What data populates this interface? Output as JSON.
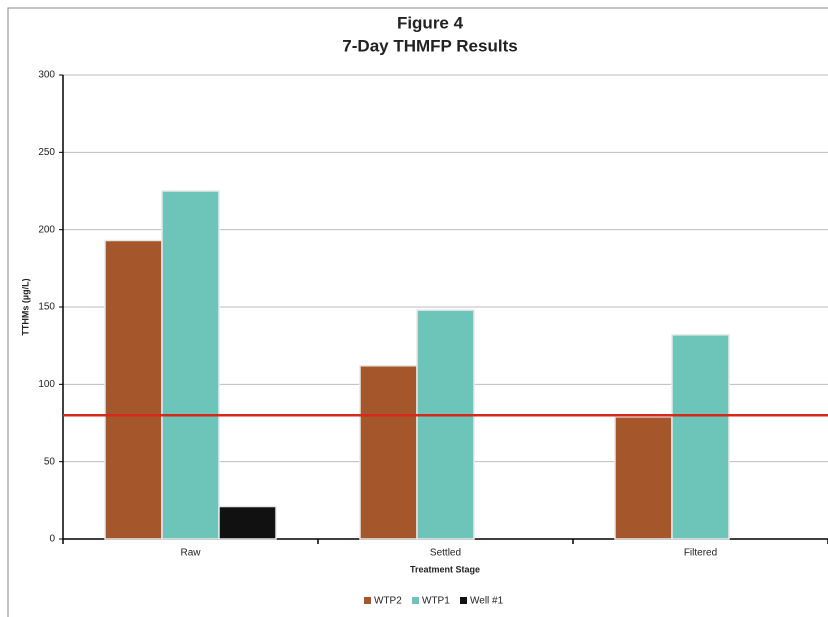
{
  "chart_data": {
    "type": "bar",
    "title": "Figure 4",
    "subtitle": "7-Day THMFP Results",
    "y_label": "TTHMs (µg/L)",
    "x_label": "Treatment Stage",
    "categories": [
      "Raw",
      "Settled",
      "Filtered"
    ],
    "series": [
      {
        "name": "WTP2",
        "color": "#a5562b",
        "values": [
          193,
          112,
          79
        ]
      },
      {
        "name": "WTP1",
        "color": "#6cc5b8",
        "values": [
          225,
          148,
          132
        ]
      },
      {
        "name": "Well #1",
        "color": "#111111",
        "values": [
          21,
          null,
          null
        ]
      }
    ],
    "reference_line": {
      "value": 80,
      "color": "#d42a1e"
    },
    "ylim": [
      0,
      300
    ],
    "yticks": [
      0,
      50,
      100,
      150,
      200,
      250,
      300
    ],
    "grid": true,
    "legend": "bottom"
  }
}
